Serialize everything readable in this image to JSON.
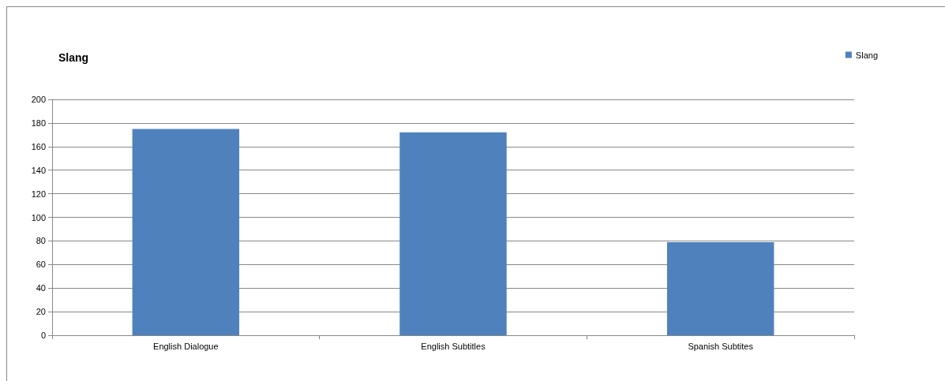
{
  "chart_data": {
    "type": "bar",
    "title": "Slang",
    "categories": [
      "English Dialogue",
      "English Subtitles",
      "Spanish Subtites"
    ],
    "series": [
      {
        "name": "Slang",
        "color": "#4f81bd",
        "values": [
          175,
          172,
          79
        ]
      }
    ],
    "ylim": [
      0,
      200
    ],
    "yticks": [
      0,
      20,
      40,
      60,
      80,
      100,
      120,
      140,
      160,
      180,
      200
    ],
    "grid": "y",
    "legend": "top right"
  }
}
